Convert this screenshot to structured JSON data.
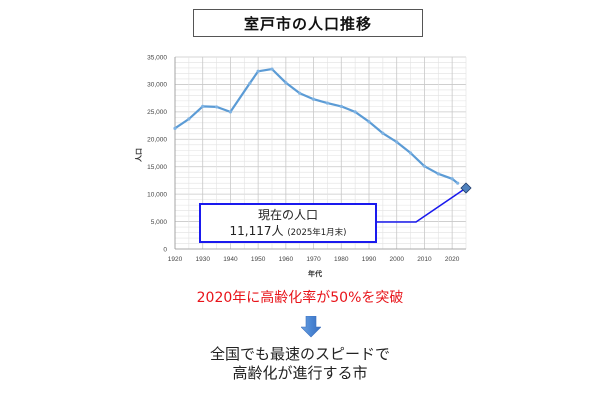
{
  "title": "室戸市の人口推移",
  "chart_data": {
    "type": "line",
    "title": "室戸市の人口推移",
    "xlabel": "年代",
    "ylabel": "人口",
    "xlim": [
      1920,
      2025
    ],
    "ylim": [
      0,
      35000
    ],
    "grid": true,
    "x_ticks": [
      "1920",
      "1930",
      "1940",
      "1950",
      "1960",
      "1970",
      "1980",
      "1990",
      "2000",
      "2010",
      "2020"
    ],
    "y_ticks": [
      "0",
      "5,000",
      "10,000",
      "15,000",
      "20,000",
      "25,000",
      "30,000",
      "35,000"
    ],
    "series": [
      {
        "name": "人口",
        "color": "#5b9bd5",
        "x": [
          1920,
          1925,
          1930,
          1935,
          1940,
          1947,
          1950,
          1955,
          1960,
          1965,
          1970,
          1975,
          1980,
          1985,
          1990,
          1995,
          2000,
          2005,
          2010,
          2015,
          2020,
          2022
        ],
        "values": [
          22000,
          23700,
          26000,
          25900,
          25000,
          30200,
          32400,
          32800,
          30300,
          28400,
          27300,
          26600,
          26000,
          25000,
          23200,
          21100,
          19500,
          17500,
          15100,
          13700,
          12800,
          12000
        ]
      },
      {
        "name": "現在の人口",
        "color": "#2e5fa8",
        "x": [
          2025
        ],
        "values": [
          11117
        ],
        "marker": "diamond"
      }
    ],
    "annotations": [
      {
        "text": "現在の人口",
        "value": "11,117人",
        "note": "(2025年1月末)",
        "points_to": [
          2025,
          11117
        ]
      }
    ]
  },
  "callout": {
    "line1": "現在の人口",
    "value": "11,117人",
    "note": "(2025年1月末)"
  },
  "highlight_text": "2020年に高齢化率が50%を突破",
  "conclusion": {
    "line1": "全国でも最速のスピードで",
    "line2": "高齢化が進行する市"
  },
  "colors": {
    "line": "#5b9bd5",
    "callout_border": "#1a1aee",
    "highlight": "#e8141a",
    "arrow": "#4a86d4"
  }
}
